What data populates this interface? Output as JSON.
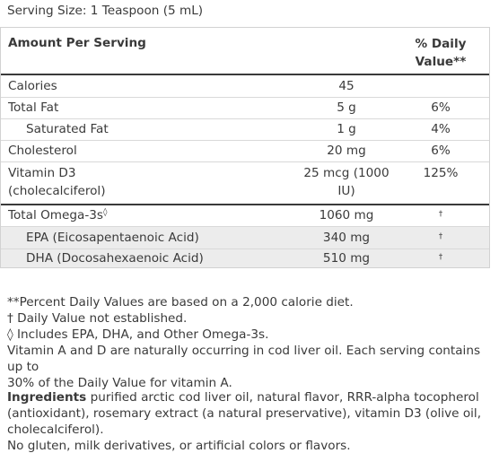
{
  "serving_size": "Serving Size: 1 Teaspoon (5 mL)",
  "header": {
    "amount_per_serving": "Amount Per Serving",
    "dv_line1": "% Daily",
    "dv_line2": "Value**"
  },
  "rows": [
    {
      "name": "Calories",
      "amount": "45",
      "dv": ""
    },
    {
      "name": "Total Fat",
      "amount": "5 g",
      "dv": "6%"
    },
    {
      "name": "Saturated Fat",
      "amount": "1 g",
      "dv": "4%"
    },
    {
      "name": "Cholesterol",
      "amount": "20 mg",
      "dv": "6%"
    },
    {
      "name_line1": "Vitamin D3",
      "name_line2": "(cholecalciferol)",
      "amount_line1": "25 mcg (1000",
      "amount_line2": "IU)",
      "dv": "125%"
    },
    {
      "name": "Total Omega-3s",
      "name_sup": "◊",
      "amount": "1060 mg",
      "dv": "†"
    },
    {
      "name": "EPA (Eicosapentaenoic Acid)",
      "amount": "340 mg",
      "dv": "†"
    },
    {
      "name": "DHA (Docosahexaenoic Acid)",
      "amount": "510 mg",
      "dv": "†"
    }
  ],
  "notes": [
    "**Percent Daily Values are based on a 2,000 calorie diet.",
    "† Daily Value not established.",
    "◊ Includes EPA, DHA, and Other Omega-3s.",
    "Vitamin A and D are naturally occurring in cod liver oil. Each serving contains up to",
    "30% of the Daily Value for vitamin A."
  ],
  "ingredients": {
    "label": "Ingredients",
    "line1": " purified arctic cod liver oil, natural flavor, RRR-alpha tocopherol",
    "line2": "(antioxidant), rosemary extract (a natural preservative), vitamin D3 (olive oil,",
    "line3": "cholecalciferol).",
    "line4": "No gluten, milk derivatives, or artificial colors or flavors."
  }
}
